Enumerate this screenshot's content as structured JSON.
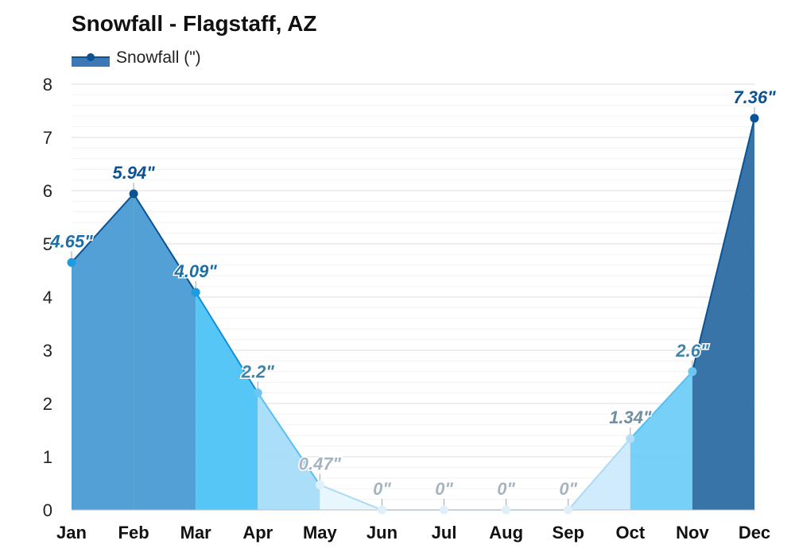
{
  "title": "Snowfall - Flagstaff, AZ",
  "legend": {
    "label": "Snowfall (\")"
  },
  "colors": {
    "line": "#0b5394",
    "point": "#0b5394",
    "grid": "#e6e6e6"
  },
  "chart_data": {
    "type": "area",
    "title": "Snowfall - Flagstaff, AZ",
    "xlabel": "",
    "ylabel": "",
    "ylim": [
      0,
      8
    ],
    "yticks": [
      0,
      1,
      2,
      3,
      4,
      5,
      6,
      7,
      8
    ],
    "categories": [
      "Jan",
      "Feb",
      "Mar",
      "Apr",
      "May",
      "Jun",
      "Jul",
      "Aug",
      "Sep",
      "Oct",
      "Nov",
      "Dec"
    ],
    "series": [
      {
        "name": "Snowfall (\")",
        "values": [
          4.65,
          5.94,
          4.09,
          2.2,
          0.47,
          0,
          0,
          0,
          0,
          1.34,
          2.6,
          7.36
        ],
        "labels": [
          "4.65\"",
          "5.94\"",
          "4.09\"",
          "2.2\"",
          "0.47\"",
          "0\"",
          "0\"",
          "0\"",
          "0\"",
          "1.34\"",
          "2.6\"",
          "7.36\""
        ]
      }
    ],
    "grid": true,
    "legend_position": "top-left"
  }
}
